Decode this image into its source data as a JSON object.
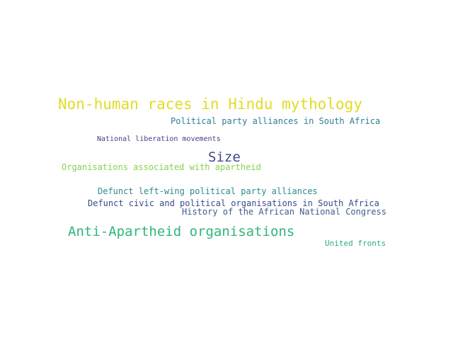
{
  "words": {
    "nonhuman": {
      "text": "Non-human races in Hindu mythology",
      "color": "#e0dc26"
    },
    "alliances": {
      "text": "Political party alliances in South Africa",
      "color": "#2c7f94"
    },
    "natlib": {
      "text": "National liberation movements",
      "color": "#433d84"
    },
    "size": {
      "text": "Size",
      "color": "#414487"
    },
    "orgs": {
      "text": "Organisations associated with apartheid",
      "color": "#84d44b"
    },
    "defleft": {
      "text": "Defunct left-wing political party alliances",
      "color": "#2b8b8c"
    },
    "defcivic": {
      "text": "Defunct civic and political organisations in South Africa",
      "color": "#3b4b8a"
    },
    "anc": {
      "text": "History of the African National Congress",
      "color": "#3f5c8a"
    },
    "antiap": {
      "text": "Anti-Apartheid organisations",
      "color": "#31b57b"
    },
    "united": {
      "text": "United fronts",
      "color": "#29af7f"
    }
  }
}
